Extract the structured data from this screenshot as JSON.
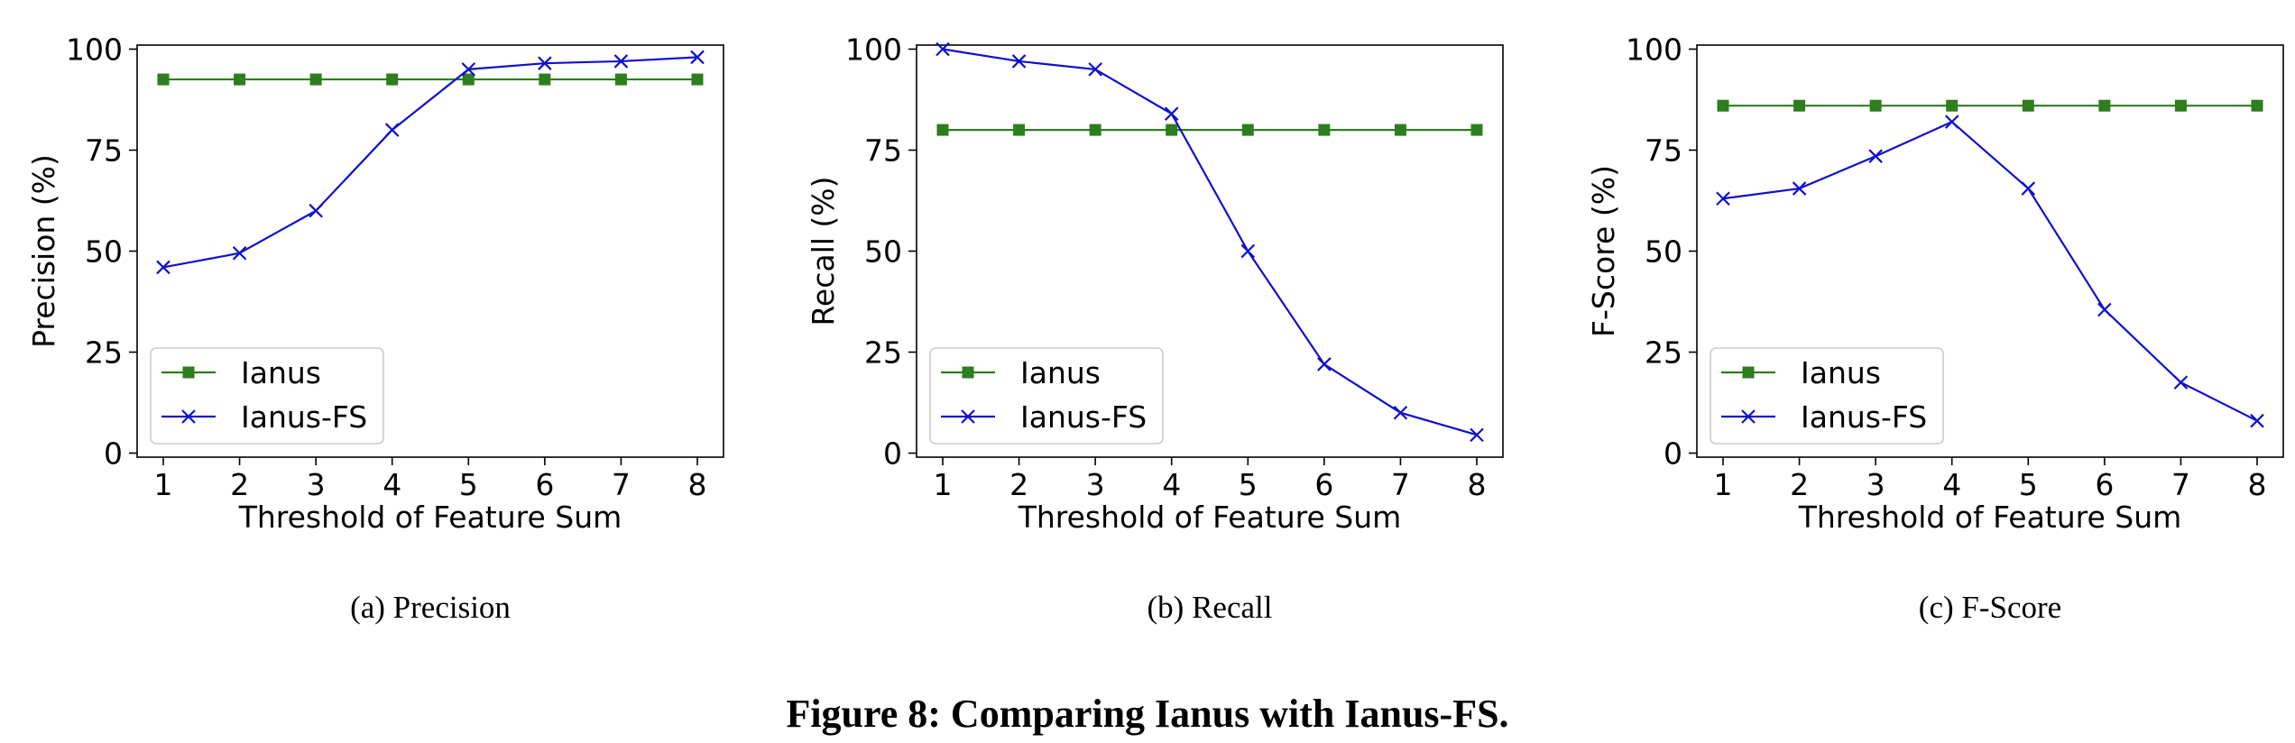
{
  "figure": {
    "caption": "Figure 8: Comparing Ianus with Ianus-FS."
  },
  "colors": {
    "ianus": "#2e7d1e",
    "ianus_fs": "#1010cc",
    "axis": "#000000",
    "legend_border": "#cccccc"
  },
  "chart_data": [
    {
      "type": "line",
      "subcaption": "(a)  Precision",
      "xlabel": "Threshold of Feature Sum",
      "ylabel": "Precision (%)",
      "x": [
        1,
        2,
        3,
        4,
        5,
        6,
        7,
        8
      ],
      "xticks": [
        "1",
        "2",
        "3",
        "4",
        "5",
        "6",
        "7",
        "8"
      ],
      "yticks": [
        "0",
        "25",
        "50",
        "75",
        "100"
      ],
      "ylim": [
        -1,
        101
      ],
      "grid": false,
      "legend_position": "lower-left",
      "series": [
        {
          "name": "Ianus",
          "marker": "square",
          "values": [
            92.5,
            92.5,
            92.5,
            92.5,
            92.5,
            92.5,
            92.5,
            92.5
          ]
        },
        {
          "name": "Ianus-FS",
          "marker": "x",
          "values": [
            46,
            49.5,
            60,
            80,
            95,
            96.5,
            97,
            98
          ]
        }
      ]
    },
    {
      "type": "line",
      "subcaption": "(b)  Recall",
      "xlabel": "Threshold of Feature Sum",
      "ylabel": "Recall (%)",
      "x": [
        1,
        2,
        3,
        4,
        5,
        6,
        7,
        8
      ],
      "xticks": [
        "1",
        "2",
        "3",
        "4",
        "5",
        "6",
        "7",
        "8"
      ],
      "yticks": [
        "0",
        "25",
        "50",
        "75",
        "100"
      ],
      "ylim": [
        -1,
        101
      ],
      "grid": false,
      "legend_position": "lower-left",
      "series": [
        {
          "name": "Ianus",
          "marker": "square",
          "values": [
            80,
            80,
            80,
            80,
            80,
            80,
            80,
            80
          ]
        },
        {
          "name": "Ianus-FS",
          "marker": "x",
          "values": [
            100,
            97,
            95,
            84,
            50,
            22,
            10,
            4.5
          ]
        }
      ]
    },
    {
      "type": "line",
      "subcaption": "(c)  F-Score",
      "xlabel": "Threshold of Feature Sum",
      "ylabel": "F-Score (%)",
      "x": [
        1,
        2,
        3,
        4,
        5,
        6,
        7,
        8
      ],
      "xticks": [
        "1",
        "2",
        "3",
        "4",
        "5",
        "6",
        "7",
        "8"
      ],
      "yticks": [
        "0",
        "25",
        "50",
        "75",
        "100"
      ],
      "ylim": [
        -1,
        101
      ],
      "grid": false,
      "legend_position": "lower-left",
      "series": [
        {
          "name": "Ianus",
          "marker": "square",
          "values": [
            86,
            86,
            86,
            86,
            86,
            86,
            86,
            86
          ]
        },
        {
          "name": "Ianus-FS",
          "marker": "x",
          "values": [
            63,
            65.5,
            73.5,
            82,
            65.5,
            35.5,
            17.5,
            8
          ]
        }
      ]
    }
  ]
}
